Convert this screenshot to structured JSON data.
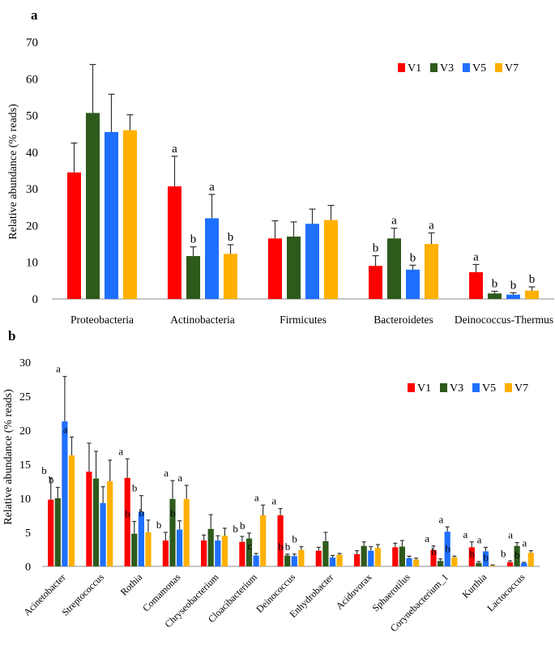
{
  "colors": {
    "V1": "#ff0000",
    "V3": "#2e5a1c",
    "V5": "#1f6fff",
    "V7": "#ffb000",
    "axis": "#8c8c8c",
    "error": "#333333"
  },
  "chart_data": [
    {
      "panel_label": "a",
      "type": "bar",
      "ylabel": "Relative abundance (% reads)",
      "ylim": [
        0,
        70
      ],
      "yticks": [
        0,
        10,
        20,
        30,
        40,
        50,
        60,
        70
      ],
      "legend": [
        "V1",
        "V3",
        "V5",
        "V7"
      ],
      "legend_position": "top-right",
      "categories": [
        "Proteobacteria",
        "Actinobacteria",
        "Firmicutes",
        "Bacteroidetes",
        "Deinococcus-Thermus"
      ],
      "series": [
        {
          "name": "V1",
          "values": [
            34.5,
            30.7,
            16.5,
            9.0,
            7.3
          ],
          "errors": [
            8.0,
            8.2,
            4.8,
            2.8,
            2.1
          ],
          "letters": [
            "",
            "a",
            "",
            "b",
            "a"
          ]
        },
        {
          "name": "V3",
          "values": [
            50.7,
            11.7,
            17.0,
            16.5,
            1.5
          ],
          "errors": [
            13.2,
            2.5,
            4.0,
            2.8,
            0.6
          ],
          "letters": [
            "",
            "b",
            "",
            "a",
            "b"
          ]
        },
        {
          "name": "V5",
          "values": [
            45.5,
            22.0,
            20.5,
            8.0,
            1.2
          ],
          "errors": [
            10.3,
            6.5,
            4.0,
            1.2,
            0.5
          ],
          "letters": [
            "",
            "a",
            "",
            "b",
            "b"
          ]
        },
        {
          "name": "V7",
          "values": [
            46.0,
            12.3,
            21.5,
            15.0,
            2.3
          ],
          "errors": [
            4.2,
            2.5,
            4.0,
            3.0,
            1.0
          ],
          "letters": [
            "",
            "b",
            "",
            "a",
            "b"
          ]
        }
      ]
    },
    {
      "panel_label": "b",
      "type": "bar",
      "ylabel": "Relative abundance (% reads)",
      "ylim": [
        0,
        30
      ],
      "yticks": [
        0,
        5,
        10,
        15,
        20,
        25,
        30
      ],
      "legend": [
        "V1",
        "V3",
        "V5",
        "V7"
      ],
      "legend_position": "top-right",
      "categories": [
        "Acinetobacter",
        "Streptococcus",
        "Rothia",
        "Comamonas",
        "Chryseobacterium",
        "Cloacibacterium",
        "Deinococcus",
        "Enhydrobacter",
        "Acidovorax",
        "Sphaerotilus",
        "Corynebacterium_1",
        "Kurthia",
        "Lactococcus"
      ],
      "series": [
        {
          "name": "V1",
          "values": [
            9.8,
            13.9,
            13.0,
            3.8,
            3.8,
            3.6,
            7.5,
            2.3,
            1.8,
            2.8,
            2.4,
            2.8,
            0.6
          ],
          "errors": [
            3.2,
            4.2,
            2.8,
            1.2,
            0.8,
            0.8,
            1.0,
            0.5,
            0.5,
            0.6,
            0.6,
            0.8,
            0.2
          ],
          "letters": [
            "b",
            "",
            "a",
            "b",
            "",
            "b",
            "a",
            "",
            "",
            "",
            "a",
            "a",
            "b"
          ]
        },
        {
          "name": "V3",
          "values": [
            10.0,
            12.9,
            4.8,
            9.9,
            5.5,
            4.1,
            1.6,
            3.7,
            3.0,
            2.9,
            0.8,
            0.5,
            3.0
          ],
          "errors": [
            1.6,
            4.0,
            1.8,
            2.7,
            2.1,
            0.8,
            0.2,
            1.3,
            0.6,
            0.9,
            0.3,
            0.2,
            0.5
          ],
          "letters": [
            "b",
            "",
            "b",
            "a",
            "",
            "b",
            "b",
            "",
            "",
            "",
            "b",
            "b",
            "a"
          ]
        },
        {
          "name": "V5",
          "values": [
            21.3,
            9.3,
            8.0,
            5.4,
            3.8,
            1.6,
            1.5,
            1.3,
            2.3,
            1.2,
            5.1,
            2.2,
            0.5
          ],
          "errors": [
            6.6,
            2.4,
            2.4,
            1.3,
            0.7,
            0.3,
            0.3,
            0.3,
            0.6,
            0.3,
            0.7,
            0.6,
            0.1
          ],
          "letters": [
            "a",
            "",
            "b",
            "b",
            "",
            "c",
            "b",
            "",
            "",
            "",
            "a",
            "a",
            "b"
          ]
        },
        {
          "name": "V7",
          "values": [
            16.3,
            12.5,
            5.0,
            9.9,
            4.5,
            7.5,
            2.4,
            1.7,
            2.7,
            1.0,
            1.3,
            0.1,
            2.0
          ],
          "errors": [
            2.7,
            3.1,
            1.8,
            2.0,
            1.1,
            1.5,
            0.5,
            0.2,
            0.5,
            0.2,
            0.2,
            0.1,
            0.3
          ],
          "letters": [
            "a",
            "",
            "b",
            "a",
            "",
            "a",
            "b",
            "",
            "",
            "",
            "b",
            "b",
            "a"
          ]
        }
      ]
    }
  ]
}
